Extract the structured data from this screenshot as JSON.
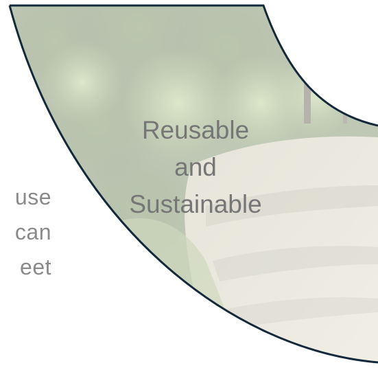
{
  "side_text": {
    "line1": "use",
    "line2": "can",
    "line3": "eet"
  },
  "card": {
    "line1": "Reusable",
    "line2": "and",
    "line3": "Sustainable"
  },
  "colors": {
    "border": "#13283a",
    "overlay": "#ffffff",
    "foliage_dark": "#2f4a1c",
    "foliage_light": "#9db56a",
    "path": "#c9c2a6",
    "text": "#767676"
  }
}
